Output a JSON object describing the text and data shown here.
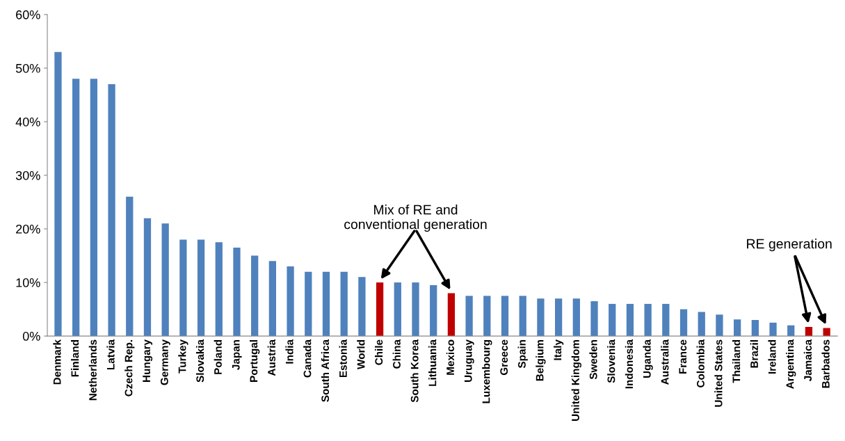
{
  "chart_data": {
    "type": "bar",
    "categories": [
      "Denmark",
      "Finland",
      "Netherlands",
      "Latvia",
      "Czech Rep.",
      "Hungary",
      "Germany",
      "Turkey",
      "Slovakia",
      "Poland",
      "Japan",
      "Portugal",
      "Austria",
      "India",
      "Canada",
      "South Africa",
      "Estonia",
      "World",
      "Chile",
      "China",
      "South Korea",
      "Lithuania",
      "Mexico",
      "Uruguay",
      "Luxembourg",
      "Greece",
      "Spain",
      "Belgium",
      "Italy",
      "United Kingdom",
      "Sweden",
      "Slovenia",
      "Indonesia",
      "Uganda",
      "Australia",
      "France",
      "Colombia",
      "United States",
      "Thailand",
      "Brazil",
      "Ireland",
      "Argentina",
      "Jamaica",
      "Barbados"
    ],
    "values": [
      53,
      48,
      48,
      47,
      26,
      22,
      21,
      18,
      18,
      17.5,
      16.5,
      15,
      14,
      13,
      12,
      12,
      12,
      11,
      10,
      10,
      10,
      9.5,
      8,
      7.5,
      7.5,
      7.5,
      7.5,
      7,
      7,
      7,
      6.5,
      6,
      6,
      6,
      6,
      5,
      4.5,
      4,
      3.1,
      3,
      2.5,
      2,
      1.7,
      1.5
    ],
    "colors": [
      "#4f81bd",
      "#4f81bd",
      "#4f81bd",
      "#4f81bd",
      "#4f81bd",
      "#4f81bd",
      "#4f81bd",
      "#4f81bd",
      "#4f81bd",
      "#4f81bd",
      "#4f81bd",
      "#4f81bd",
      "#4f81bd",
      "#4f81bd",
      "#4f81bd",
      "#4f81bd",
      "#4f81bd",
      "#4f81bd",
      "#c00000",
      "#4f81bd",
      "#4f81bd",
      "#4f81bd",
      "#c00000",
      "#4f81bd",
      "#4f81bd",
      "#4f81bd",
      "#4f81bd",
      "#4f81bd",
      "#4f81bd",
      "#4f81bd",
      "#4f81bd",
      "#4f81bd",
      "#4f81bd",
      "#4f81bd",
      "#4f81bd",
      "#4f81bd",
      "#4f81bd",
      "#4f81bd",
      "#4f81bd",
      "#4f81bd",
      "#4f81bd",
      "#4f81bd",
      "#c00000",
      "#c00000"
    ],
    "ylim": [
      0,
      60
    ],
    "yticks": [
      {
        "value": 0,
        "label": "0%"
      },
      {
        "value": 10,
        "label": "10%"
      },
      {
        "value": 20,
        "label": "20%"
      },
      {
        "value": 30,
        "label": "30%"
      },
      {
        "value": 40,
        "label": "40%"
      },
      {
        "value": 50,
        "label": "50%"
      },
      {
        "value": 60,
        "label": "60%"
      }
    ],
    "annotations": [
      "Mix of RE and\nconventional generation",
      "RE generation"
    ],
    "grid": false
  }
}
